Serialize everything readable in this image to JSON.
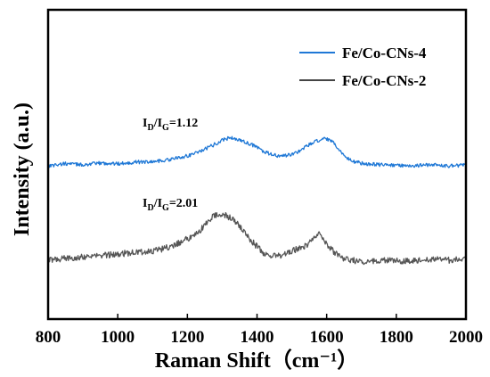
{
  "chart_data": {
    "type": "line",
    "xlabel": "Raman Shift（cm⁻¹）",
    "ylabel": "Intensity (a.u.)",
    "xlim": [
      800,
      2000
    ],
    "x_ticks": [
      "800",
      "1000",
      "1200",
      "1400",
      "1600",
      "1800",
      "2000"
    ],
    "x_tick_values": [
      800,
      1000,
      1200,
      1400,
      1600,
      1800,
      2000
    ],
    "y_ticks": "none",
    "grid": false,
    "legend_placement": "top-right",
    "annotations": [
      {
        "label_base": "I",
        "sub1": "D",
        "slash": "/I",
        "sub2": "G",
        "value_text": "=1.12",
        "x": 1130,
        "series": "Fe/Co-CNs-4"
      },
      {
        "label_base": "I",
        "sub1": "D",
        "slash": "/I",
        "sub2": "G",
        "value_text": "=2.01",
        "x": 1130,
        "series": "Fe/Co-CNs-2"
      }
    ],
    "series": [
      {
        "name": "Fe/Co-CNs-4",
        "color": "#1f78d6",
        "x": [
          800,
          850,
          900,
          950,
          1000,
          1050,
          1100,
          1150,
          1200,
          1250,
          1280,
          1300,
          1320,
          1340,
          1360,
          1380,
          1400,
          1420,
          1440,
          1460,
          1480,
          1500,
          1520,
          1540,
          1560,
          1580,
          1600,
          1620,
          1640,
          1660,
          1680,
          1700,
          1750,
          1800,
          1850,
          1900,
          1950,
          2000
        ],
        "values": [
          0.98,
          1.02,
          1.0,
          1.03,
          1.02,
          1.05,
          1.06,
          1.1,
          1.17,
          1.3,
          1.4,
          1.48,
          1.52,
          1.5,
          1.45,
          1.4,
          1.34,
          1.25,
          1.2,
          1.17,
          1.17,
          1.2,
          1.26,
          1.35,
          1.42,
          1.48,
          1.5,
          1.42,
          1.25,
          1.12,
          1.06,
          1.03,
          1.0,
          0.99,
          0.98,
          1.0,
          0.98,
          0.99
        ],
        "noise": 0.035
      },
      {
        "name": "Fe/Co-CNs-2",
        "color": "#555555",
        "x": [
          800,
          850,
          900,
          950,
          1000,
          1050,
          1100,
          1150,
          1200,
          1230,
          1250,
          1270,
          1290,
          1310,
          1330,
          1350,
          1370,
          1400,
          1420,
          1440,
          1460,
          1480,
          1500,
          1520,
          1540,
          1560,
          1580,
          1600,
          1620,
          1650,
          1700,
          1750,
          1800,
          1850,
          1900,
          1950,
          2000
        ],
        "values": [
          0.0,
          0.02,
          0.04,
          0.05,
          0.07,
          0.09,
          0.1,
          0.15,
          0.24,
          0.3,
          0.4,
          0.48,
          0.52,
          0.5,
          0.46,
          0.38,
          0.28,
          0.15,
          0.08,
          0.05,
          0.05,
          0.07,
          0.1,
          0.13,
          0.16,
          0.25,
          0.3,
          0.18,
          0.1,
          0.02,
          -0.02,
          0.0,
          -0.01,
          0.0,
          0.01,
          0.0,
          0.02
        ],
        "noise": 0.035
      }
    ]
  }
}
